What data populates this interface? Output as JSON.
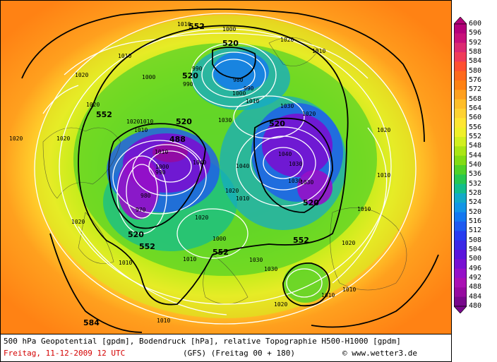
{
  "caption": {
    "line1": "500 hPa Geopotential [gpdm], Bodendruck [hPa], relative Topographie H500-H1000 [gpdm]",
    "date": "Freitag, 11-12-2009  12 UTC",
    "model": "(GFS)  (Freitag 00 + 180)",
    "credit": "© www.wetter3.de"
  },
  "colorbar": {
    "labels": [
      "600",
      "596",
      "592",
      "588",
      "584",
      "580",
      "576",
      "572",
      "568",
      "564",
      "560",
      "556",
      "552",
      "548",
      "544",
      "540",
      "536",
      "532",
      "528",
      "524",
      "520",
      "516",
      "512",
      "508",
      "504",
      "500",
      "496",
      "492",
      "488",
      "484",
      "480"
    ],
    "colors": [
      "#b4007a",
      "#c8107a",
      "#dc2a72",
      "#f03c5a",
      "#ff5032",
      "#ff6a1e",
      "#ff8214",
      "#ffa01e",
      "#ffbe28",
      "#ffd232",
      "#ffe632",
      "#f0f028",
      "#d2f01e",
      "#aae614",
      "#82dc14",
      "#50d228",
      "#28c850",
      "#14be8c",
      "#14aac8",
      "#1496e6",
      "#1478f0",
      "#1e5af0",
      "#283cf0",
      "#3c28e6",
      "#5a14dc",
      "#7810d2",
      "#9610c8",
      "#aa10b4",
      "#960aa0",
      "#78088c"
    ]
  },
  "map": {
    "height_labels": [
      "552",
      "552",
      "552",
      "552",
      "552",
      "520",
      "520",
      "520",
      "520",
      "520",
      "520",
      "488",
      "584"
    ],
    "pressure_labels": [
      "1000",
      "1010",
      "1010",
      "1020",
      "1020",
      "1010",
      "1020",
      "1010",
      "1030",
      "1040",
      "1030",
      "1020",
      "1010",
      "1010",
      "1030",
      "1040",
      "1040",
      "1030",
      "1020",
      "1030",
      "1020",
      "1010",
      "1010",
      "1020",
      "990",
      "980",
      "990",
      "1000",
      "1000",
      "990",
      "980",
      "970",
      "1000",
      "990",
      "1010",
      "1020",
      "1020",
      "1010",
      "1010",
      "1000",
      "1010",
      "1020",
      "1030",
      "1020",
      "1010",
      "1030",
      "1020",
      "1010",
      "1010",
      "1020"
    ]
  }
}
